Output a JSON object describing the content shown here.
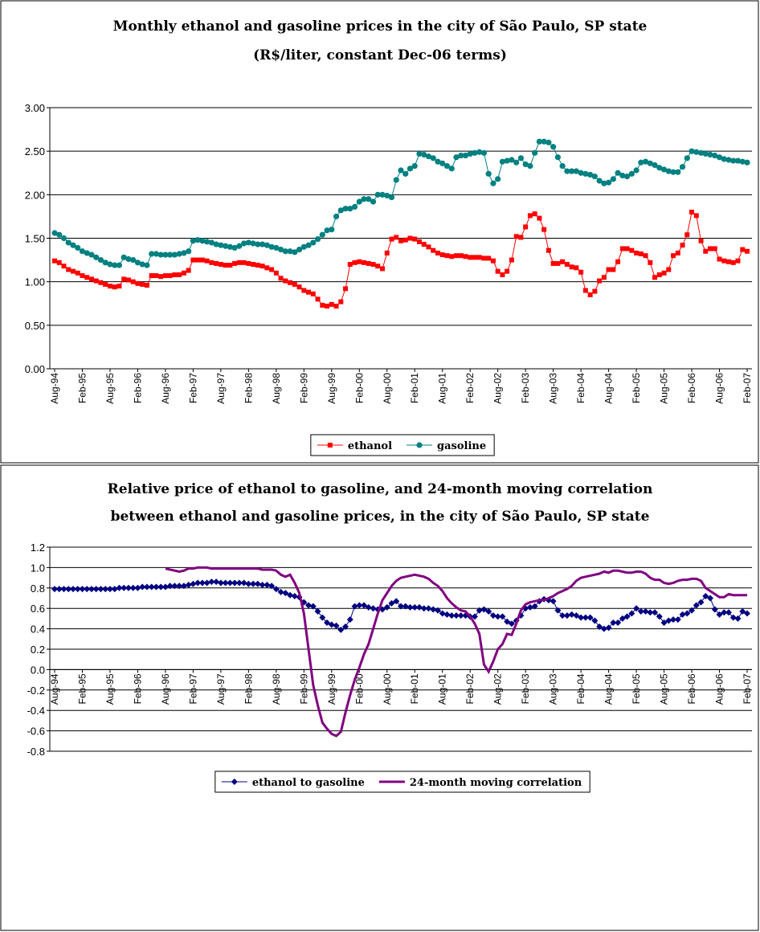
{
  "chart_data": [
    {
      "type": "line",
      "title": [
        "Monthly ethanol and gasoline prices in the city of São Paulo, SP state",
        "(R$/liter, constant Dec-06 terms)"
      ],
      "categories": [
        "Aug-94",
        null,
        null,
        null,
        null,
        null,
        "Feb-95",
        null,
        null,
        null,
        null,
        null,
        "Aug-95",
        null,
        null,
        null,
        null,
        null,
        "Feb-96",
        null,
        null,
        null,
        null,
        null,
        "Aug-96",
        null,
        null,
        null,
        null,
        null,
        "Feb-97",
        null,
        null,
        null,
        null,
        null,
        "Aug-97",
        null,
        null,
        null,
        null,
        null,
        "Feb-98",
        null,
        null,
        null,
        null,
        null,
        "Aug-98",
        null,
        null,
        null,
        null,
        null,
        "Feb-99",
        null,
        null,
        null,
        null,
        null,
        "Aug-99",
        null,
        null,
        null,
        null,
        null,
        "Feb-00",
        null,
        null,
        null,
        null,
        null,
        "Aug-00",
        null,
        null,
        null,
        null,
        null,
        "Feb-01",
        null,
        null,
        null,
        null,
        null,
        "Aug-01",
        null,
        null,
        null,
        null,
        null,
        "Feb-02",
        null,
        null,
        null,
        null,
        null,
        "Aug-02",
        null,
        null,
        null,
        null,
        null,
        "Feb-03",
        null,
        null,
        null,
        null,
        null,
        "Aug-03",
        null,
        null,
        null,
        null,
        null,
        "Feb-04",
        null,
        null,
        null,
        null,
        null,
        "Aug-04",
        null,
        null,
        null,
        null,
        null,
        "Feb-05",
        null,
        null,
        null,
        null,
        null,
        "Aug-05",
        null,
        null,
        null,
        null,
        null,
        "Feb-06",
        null,
        null,
        null,
        null,
        null,
        "Aug-06",
        null,
        null,
        null,
        null,
        null,
        "Feb-07"
      ],
      "series": [
        {
          "name": "ethanol",
          "color": "#ff0000",
          "marker": "square",
          "values": [
            1.24,
            1.22,
            1.18,
            1.14,
            1.12,
            1.1,
            1.07,
            1.05,
            1.03,
            1.01,
            0.99,
            0.97,
            0.95,
            0.94,
            0.95,
            1.03,
            1.02,
            1.0,
            0.98,
            0.97,
            0.96,
            1.07,
            1.07,
            1.06,
            1.07,
            1.07,
            1.08,
            1.08,
            1.1,
            1.13,
            1.25,
            1.25,
            1.25,
            1.24,
            1.22,
            1.21,
            1.2,
            1.19,
            1.19,
            1.21,
            1.22,
            1.22,
            1.21,
            1.2,
            1.19,
            1.18,
            1.16,
            1.14,
            1.1,
            1.04,
            1.01,
            0.99,
            0.97,
            0.94,
            0.9,
            0.88,
            0.86,
            0.8,
            0.73,
            0.72,
            0.74,
            0.72,
            0.77,
            0.92,
            1.2,
            1.22,
            1.23,
            1.22,
            1.21,
            1.2,
            1.18,
            1.15,
            1.33,
            1.49,
            1.51,
            1.47,
            1.48,
            1.5,
            1.49,
            1.46,
            1.43,
            1.4,
            1.36,
            1.33,
            1.31,
            1.3,
            1.29,
            1.3,
            1.3,
            1.29,
            1.28,
            1.28,
            1.28,
            1.27,
            1.27,
            1.24,
            1.12,
            1.08,
            1.12,
            1.25,
            1.52,
            1.51,
            1.63,
            1.76,
            1.78,
            1.73,
            1.6,
            1.36,
            1.21,
            1.21,
            1.23,
            1.2,
            1.17,
            1.16,
            1.11,
            0.9,
            0.85,
            0.89,
            1.01,
            1.05,
            1.14,
            1.14,
            1.23,
            1.38,
            1.38,
            1.36,
            1.33,
            1.32,
            1.3,
            1.22,
            1.05,
            1.08,
            1.1,
            1.14,
            1.3,
            1.33,
            1.42,
            1.54,
            1.8,
            1.76,
            1.47,
            1.35,
            1.38,
            1.38,
            1.26,
            1.24,
            1.23,
            1.22,
            1.24,
            1.37,
            1.35
          ]
        },
        {
          "name": "gasoline",
          "color": "#008080",
          "marker": "circle",
          "values": [
            1.56,
            1.54,
            1.5,
            1.45,
            1.42,
            1.39,
            1.35,
            1.33,
            1.31,
            1.28,
            1.25,
            1.22,
            1.2,
            1.19,
            1.19,
            1.28,
            1.26,
            1.25,
            1.22,
            1.2,
            1.19,
            1.32,
            1.32,
            1.31,
            1.31,
            1.31,
            1.31,
            1.32,
            1.33,
            1.35,
            1.47,
            1.48,
            1.47,
            1.46,
            1.45,
            1.43,
            1.42,
            1.41,
            1.4,
            1.39,
            1.41,
            1.44,
            1.45,
            1.44,
            1.43,
            1.43,
            1.42,
            1.4,
            1.39,
            1.37,
            1.35,
            1.35,
            1.34,
            1.37,
            1.4,
            1.42,
            1.45,
            1.49,
            1.54,
            1.59,
            1.6,
            1.75,
            1.82,
            1.84,
            1.84,
            1.86,
            1.92,
            1.95,
            1.95,
            1.92,
            2.0,
            2.0,
            1.99,
            1.97,
            2.17,
            2.28,
            2.24,
            2.3,
            2.33,
            2.47,
            2.46,
            2.44,
            2.42,
            2.38,
            2.36,
            2.33,
            2.3,
            2.43,
            2.45,
            2.45,
            2.47,
            2.48,
            2.49,
            2.48,
            2.24,
            2.13,
            2.18,
            2.38,
            2.39,
            2.4,
            2.37,
            2.42,
            2.35,
            2.33,
            2.48,
            2.61,
            2.61,
            2.6,
            2.55,
            2.43,
            2.33,
            2.27,
            2.27,
            2.27,
            2.25,
            2.24,
            2.23,
            2.21,
            2.16,
            2.13,
            2.14,
            2.18,
            2.25,
            2.22,
            2.21,
            2.24,
            2.28,
            2.37,
            2.38,
            2.36,
            2.34,
            2.31,
            2.29,
            2.27,
            2.26,
            2.26,
            2.32,
            2.42,
            2.5,
            2.49,
            2.48,
            2.47,
            2.46,
            2.45,
            2.43,
            2.41,
            2.4,
            2.39,
            2.39,
            2.38,
            2.37
          ]
        }
      ],
      "ylim": [
        0,
        3
      ],
      "yticks": [
        {
          "value": 0,
          "label": "0.00"
        },
        {
          "value": 0.5,
          "label": "0.50"
        },
        {
          "value": 1,
          "label": "1.00"
        },
        {
          "value": 1.5,
          "label": "1.50"
        },
        {
          "value": 2,
          "label": "2.00"
        },
        {
          "value": 2.5,
          "label": "2.50"
        },
        {
          "value": 3,
          "label": "3.00"
        }
      ],
      "grid": true,
      "legend": "bottom"
    },
    {
      "type": "line",
      "title": [
        "Relative price of ethanol to gasoline, and 24-month moving correlation",
        "between ethanol and gasoline prices, in the city of São Paulo, SP state"
      ],
      "categories": [
        "Aug-94",
        null,
        null,
        null,
        null,
        null,
        "Feb-95",
        null,
        null,
        null,
        null,
        null,
        "Aug-95",
        null,
        null,
        null,
        null,
        null,
        "Feb-96",
        null,
        null,
        null,
        null,
        null,
        "Aug-96",
        null,
        null,
        null,
        null,
        null,
        "Feb-97",
        null,
        null,
        null,
        null,
        null,
        "Aug-97",
        null,
        null,
        null,
        null,
        null,
        "Feb-98",
        null,
        null,
        null,
        null,
        null,
        "Aug-98",
        null,
        null,
        null,
        null,
        null,
        "Feb-99",
        null,
        null,
        null,
        null,
        null,
        "Aug-99",
        null,
        null,
        null,
        null,
        null,
        "Feb-00",
        null,
        null,
        null,
        null,
        null,
        "Aug-00",
        null,
        null,
        null,
        null,
        null,
        "Feb-01",
        null,
        null,
        null,
        null,
        null,
        "Aug-01",
        null,
        null,
        null,
        null,
        null,
        "Feb-02",
        null,
        null,
        null,
        null,
        null,
        "Aug-02",
        null,
        null,
        null,
        null,
        null,
        "Feb-03",
        null,
        null,
        null,
        null,
        null,
        "Aug-03",
        null,
        null,
        null,
        null,
        null,
        "Feb-04",
        null,
        null,
        null,
        null,
        null,
        "Aug-04",
        null,
        null,
        null,
        null,
        null,
        "Feb-05",
        null,
        null,
        null,
        null,
        null,
        "Aug-05",
        null,
        null,
        null,
        null,
        null,
        "Feb-06",
        null,
        null,
        null,
        null,
        null,
        "Aug-06",
        null,
        null,
        null,
        null,
        null,
        "Feb-07"
      ],
      "series": [
        {
          "name": "ethanol to gasoline",
          "color": "#000080",
          "marker": "diamond",
          "values": [
            0.79,
            0.79,
            0.79,
            0.79,
            0.79,
            0.79,
            0.79,
            0.79,
            0.79,
            0.79,
            0.79,
            0.79,
            0.79,
            0.79,
            0.8,
            0.8,
            0.8,
            0.8,
            0.8,
            0.81,
            0.81,
            0.81,
            0.81,
            0.81,
            0.81,
            0.82,
            0.82,
            0.82,
            0.82,
            0.83,
            0.84,
            0.85,
            0.85,
            0.85,
            0.86,
            0.86,
            0.85,
            0.85,
            0.85,
            0.85,
            0.85,
            0.85,
            0.84,
            0.84,
            0.84,
            0.83,
            0.83,
            0.82,
            0.79,
            0.76,
            0.75,
            0.73,
            0.72,
            0.71,
            0.66,
            0.63,
            0.62,
            0.57,
            0.51,
            0.46,
            0.44,
            0.43,
            0.39,
            0.42,
            0.49,
            0.62,
            0.63,
            0.63,
            0.61,
            0.6,
            0.59,
            0.59,
            0.61,
            0.65,
            0.67,
            0.62,
            0.62,
            0.61,
            0.61,
            0.61,
            0.6,
            0.6,
            0.59,
            0.58,
            0.55,
            0.54,
            0.53,
            0.53,
            0.53,
            0.53,
            0.52,
            0.52,
            0.58,
            0.59,
            0.57,
            0.53,
            0.52,
            0.52,
            0.47,
            0.45,
            0.48,
            0.53,
            0.6,
            0.61,
            0.62,
            0.67,
            0.69,
            0.68,
            0.67,
            0.58,
            0.53,
            0.53,
            0.54,
            0.53,
            0.51,
            0.51,
            0.51,
            0.48,
            0.42,
            0.4,
            0.41,
            0.46,
            0.46,
            0.5,
            0.52,
            0.55,
            0.6,
            0.57,
            0.57,
            0.56,
            0.56,
            0.52,
            0.46,
            0.48,
            0.49,
            0.49,
            0.54,
            0.55,
            0.58,
            0.63,
            0.66,
            0.72,
            0.7,
            0.59,
            0.54,
            0.56,
            0.56,
            0.51,
            0.5,
            0.57,
            0.55
          ]
        },
        {
          "name": "24-month moving correlation",
          "color": "#800080",
          "marker": "none",
          "values": [
            null,
            null,
            null,
            null,
            null,
            null,
            null,
            null,
            null,
            null,
            null,
            null,
            null,
            null,
            null,
            null,
            null,
            null,
            null,
            null,
            null,
            null,
            null,
            null,
            0.99,
            0.98,
            0.97,
            0.96,
            0.97,
            0.99,
            0.99,
            1.0,
            1.0,
            1.0,
            0.99,
            0.99,
            0.99,
            0.99,
            0.99,
            0.99,
            0.99,
            0.99,
            0.99,
            0.99,
            0.99,
            0.98,
            0.98,
            0.98,
            0.97,
            0.93,
            0.91,
            0.93,
            0.85,
            0.75,
            0.55,
            0.2,
            -0.15,
            -0.35,
            -0.52,
            -0.58,
            -0.63,
            -0.65,
            -0.61,
            -0.42,
            -0.25,
            -0.1,
            0.02,
            0.15,
            0.25,
            0.4,
            0.55,
            0.68,
            0.75,
            0.82,
            0.87,
            0.9,
            0.91,
            0.92,
            0.93,
            0.92,
            0.91,
            0.89,
            0.85,
            0.82,
            0.77,
            0.7,
            0.65,
            0.61,
            0.58,
            0.57,
            0.52,
            0.45,
            0.35,
            0.05,
            -0.02,
            0.08,
            0.2,
            0.25,
            0.35,
            0.34,
            0.45,
            0.58,
            0.64,
            0.66,
            0.67,
            0.68,
            0.68,
            0.7,
            0.72,
            0.75,
            0.77,
            0.79,
            0.82,
            0.87,
            0.9,
            0.91,
            0.92,
            0.93,
            0.94,
            0.96,
            0.95,
            0.97,
            0.97,
            0.96,
            0.95,
            0.95,
            0.96,
            0.96,
            0.94,
            0.9,
            0.88,
            0.88,
            0.85,
            0.84,
            0.85,
            0.87,
            0.88,
            0.88,
            0.89,
            0.89,
            0.87,
            0.8,
            0.77,
            0.74,
            0.71,
            0.71,
            0.74,
            0.73,
            0.73,
            0.73,
            0.73
          ]
        }
      ],
      "ylim": [
        -0.8,
        1.2
      ],
      "yticks": [
        -0.8,
        -0.6,
        -0.4,
        -0.2,
        {
          "value": 0,
          "label": "0.0"
        },
        0.2,
        0.4,
        0.6,
        0.8,
        {
          "value": 1,
          "label": "1.0"
        },
        1.2
      ],
      "grid": true,
      "legend": "bottom"
    }
  ]
}
